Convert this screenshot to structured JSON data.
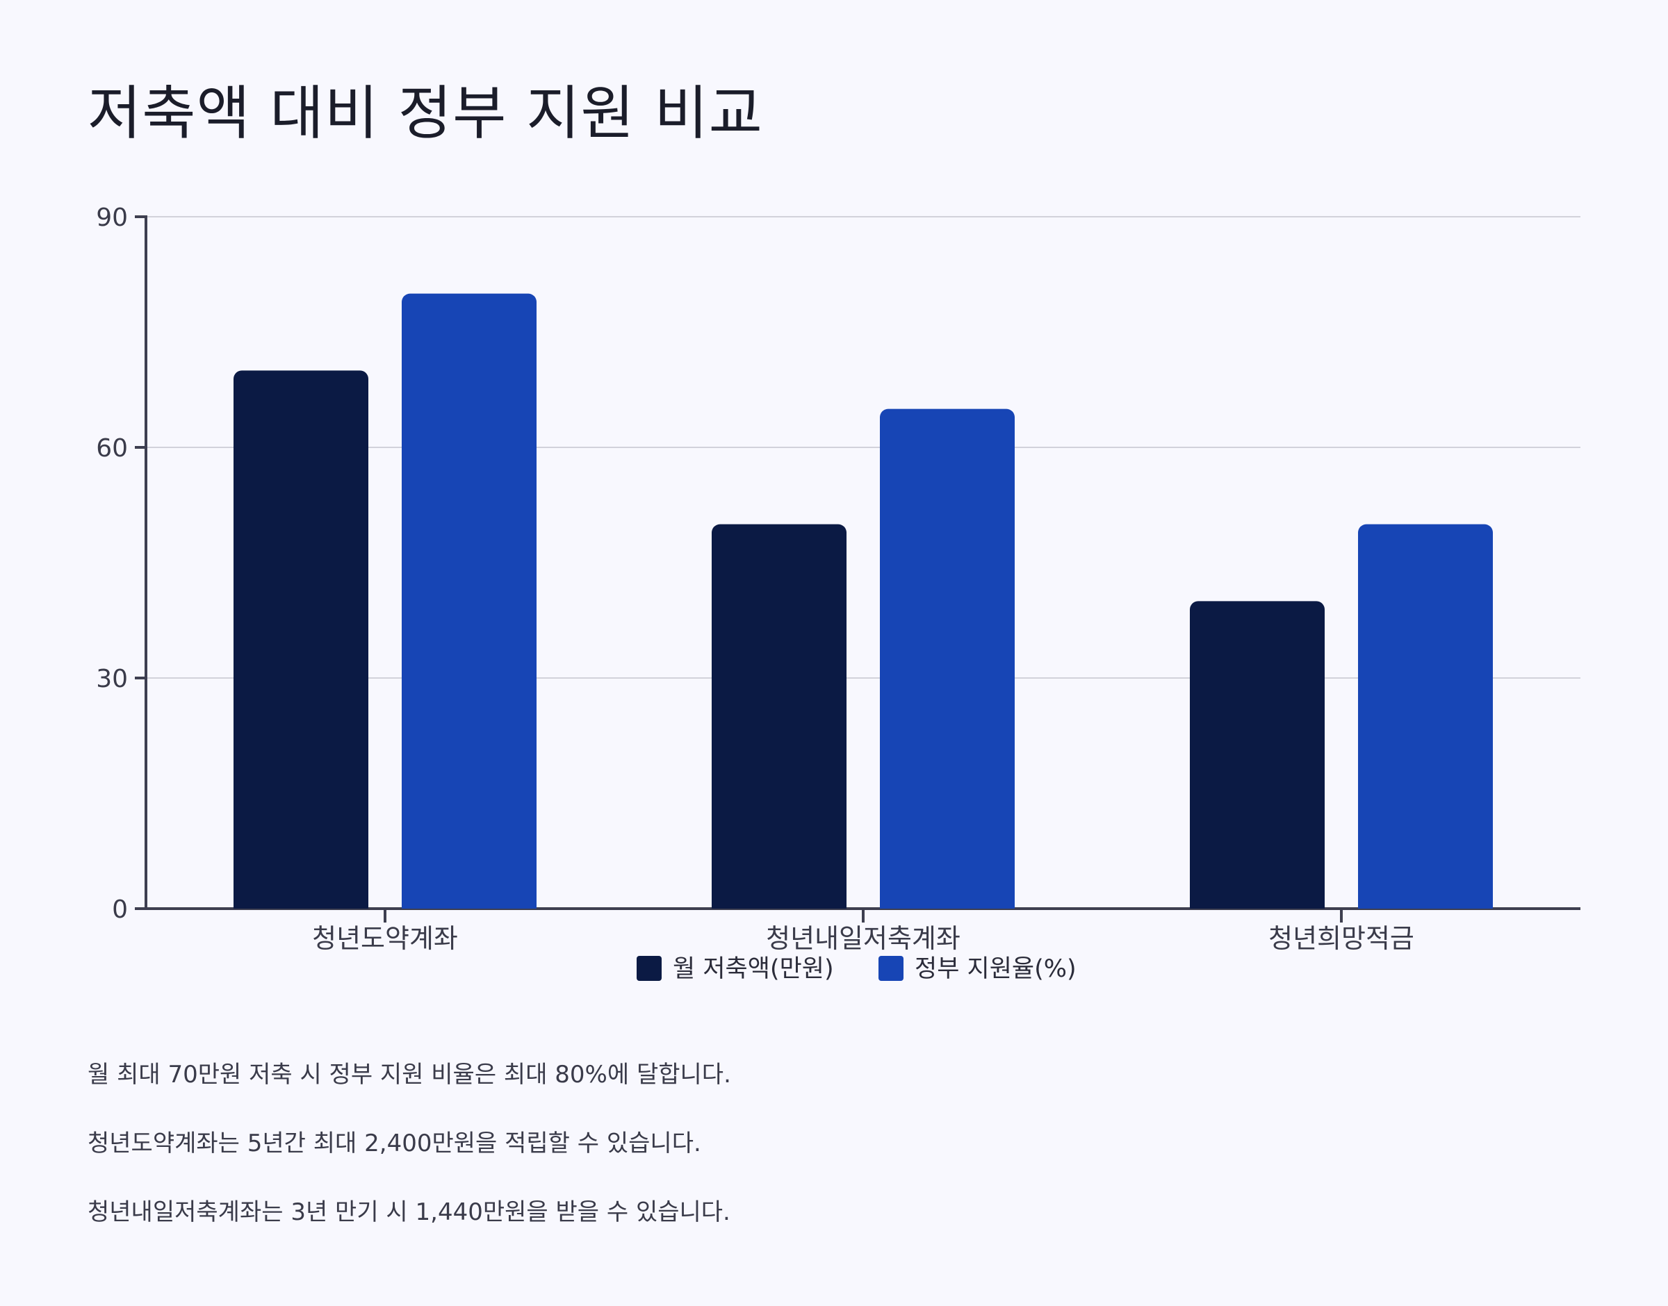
{
  "title": "저축액 대비 정부 지원 비교",
  "chart_data": {
    "type": "bar",
    "categories": [
      "청년도약계좌",
      "청년내일저축계좌",
      "청년희망적금"
    ],
    "series": [
      {
        "name": "월 저축액(만원)",
        "values": [
          70,
          50,
          40
        ],
        "color": "#0b1a44"
      },
      {
        "name": "정부 지원율(%)",
        "values": [
          80,
          65,
          50
        ],
        "color": "#1745b5"
      }
    ],
    "ylim": [
      0,
      90
    ],
    "yticks": [
      "0",
      "30",
      "60",
      "90"
    ],
    "grid": true,
    "legend": "bottom-center"
  },
  "notes": [
    "월 최대 70만원 저축 시 정부 지원 비율은 최대 80%에 달합니다.",
    "청년도약계좌는 5년간 최대 2,400만원을 적립할 수 있습니다.",
    "청년내일저축계좌는 3년 만기 시 1,440만원을 받을 수 있습니다."
  ]
}
